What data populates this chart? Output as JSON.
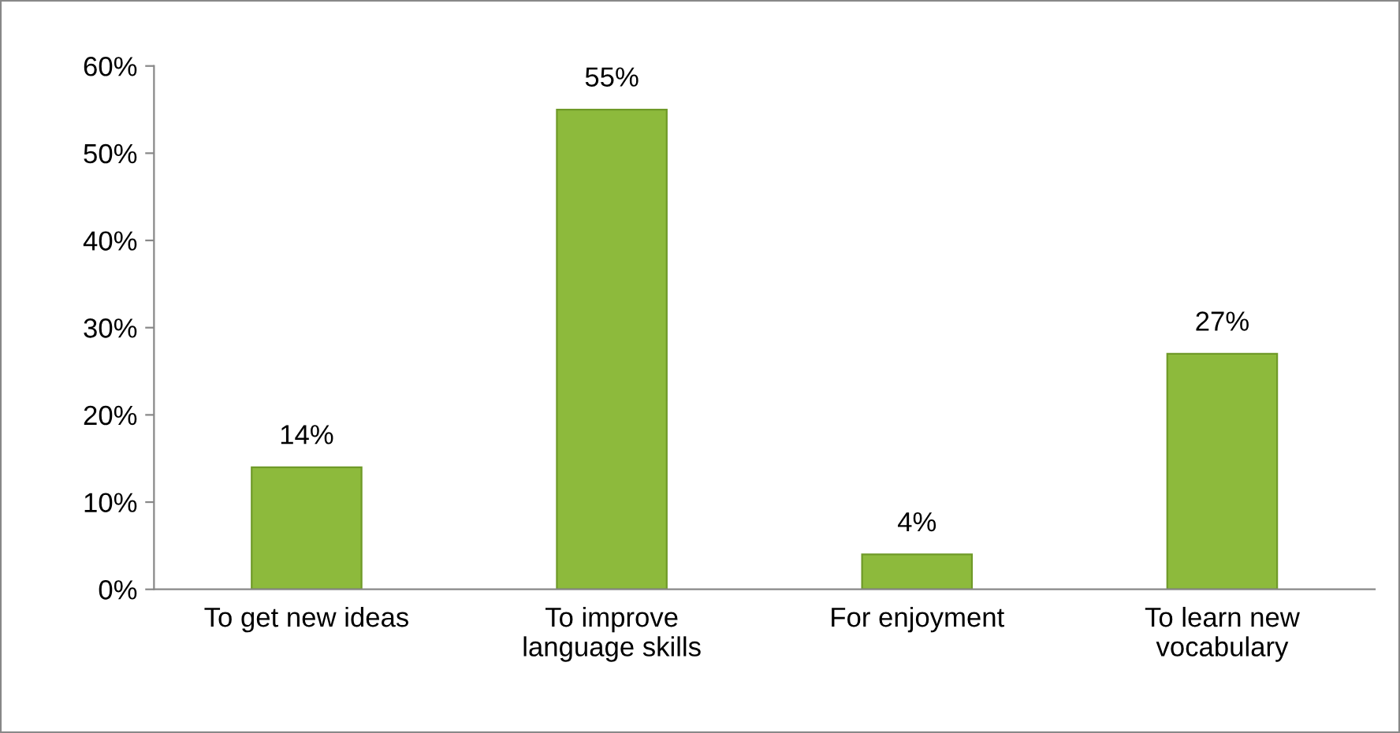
{
  "chart_data": {
    "type": "bar",
    "categories": [
      "To get new ideas",
      "To improve\nlanguage skills",
      "For enjoyment",
      "To learn new\nvocabulary"
    ],
    "values": [
      14,
      55,
      4,
      27
    ],
    "value_labels": [
      "14%",
      "55%",
      "4%",
      "27%"
    ],
    "color": "#8dba3c",
    "ylim": [
      0,
      60
    ],
    "yticks": [
      {
        "value": 0,
        "label": "0%"
      },
      {
        "value": 10,
        "label": "10%"
      },
      {
        "value": 20,
        "label": "20%"
      },
      {
        "value": 30,
        "label": "30%"
      },
      {
        "value": 40,
        "label": "40%"
      },
      {
        "value": 50,
        "label": "50%"
      },
      {
        "value": 60,
        "label": "60%"
      }
    ],
    "grid": false,
    "legend": false
  }
}
